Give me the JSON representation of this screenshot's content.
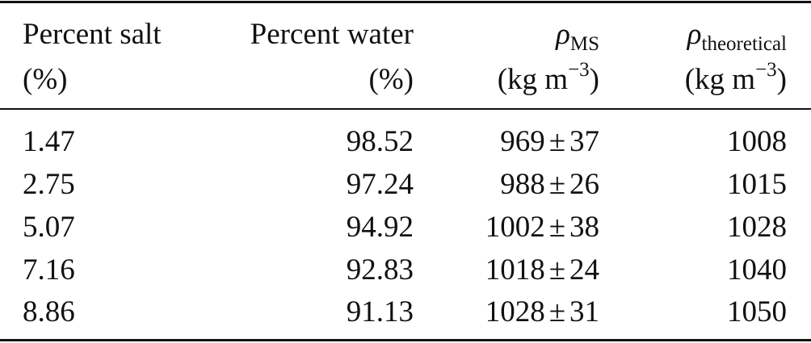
{
  "table": {
    "headers": {
      "salt": {
        "line1": "Percent salt",
        "line2": "(%)"
      },
      "water": {
        "line1": "Percent water",
        "line2": "(%)"
      },
      "rho_ms": {
        "symbol": "ρ",
        "subscript": "MS",
        "unit": "(kg m",
        "exponent": "−3",
        "unit_close": ")"
      },
      "rho_theoretical": {
        "symbol": "ρ",
        "subscript": "theoretical",
        "unit": "(kg m",
        "exponent": "−3",
        "unit_close": ")"
      }
    },
    "plus_minus": "±",
    "rows": [
      {
        "salt": "1.47",
        "water": "98.52",
        "rho_ms_value": "969",
        "rho_ms_error": "37",
        "rho_theoretical": "1008"
      },
      {
        "salt": "2.75",
        "water": "97.24",
        "rho_ms_value": "988",
        "rho_ms_error": "26",
        "rho_theoretical": "1015"
      },
      {
        "salt": "5.07",
        "water": "94.92",
        "rho_ms_value": "1002",
        "rho_ms_error": "38",
        "rho_theoretical": "1028"
      },
      {
        "salt": "7.16",
        "water": "92.83",
        "rho_ms_value": "1018",
        "rho_ms_error": "24",
        "rho_theoretical": "1040"
      },
      {
        "salt": "8.86",
        "water": "91.13",
        "rho_ms_value": "1028",
        "rho_ms_error": "31",
        "rho_theoretical": "1050"
      }
    ]
  }
}
